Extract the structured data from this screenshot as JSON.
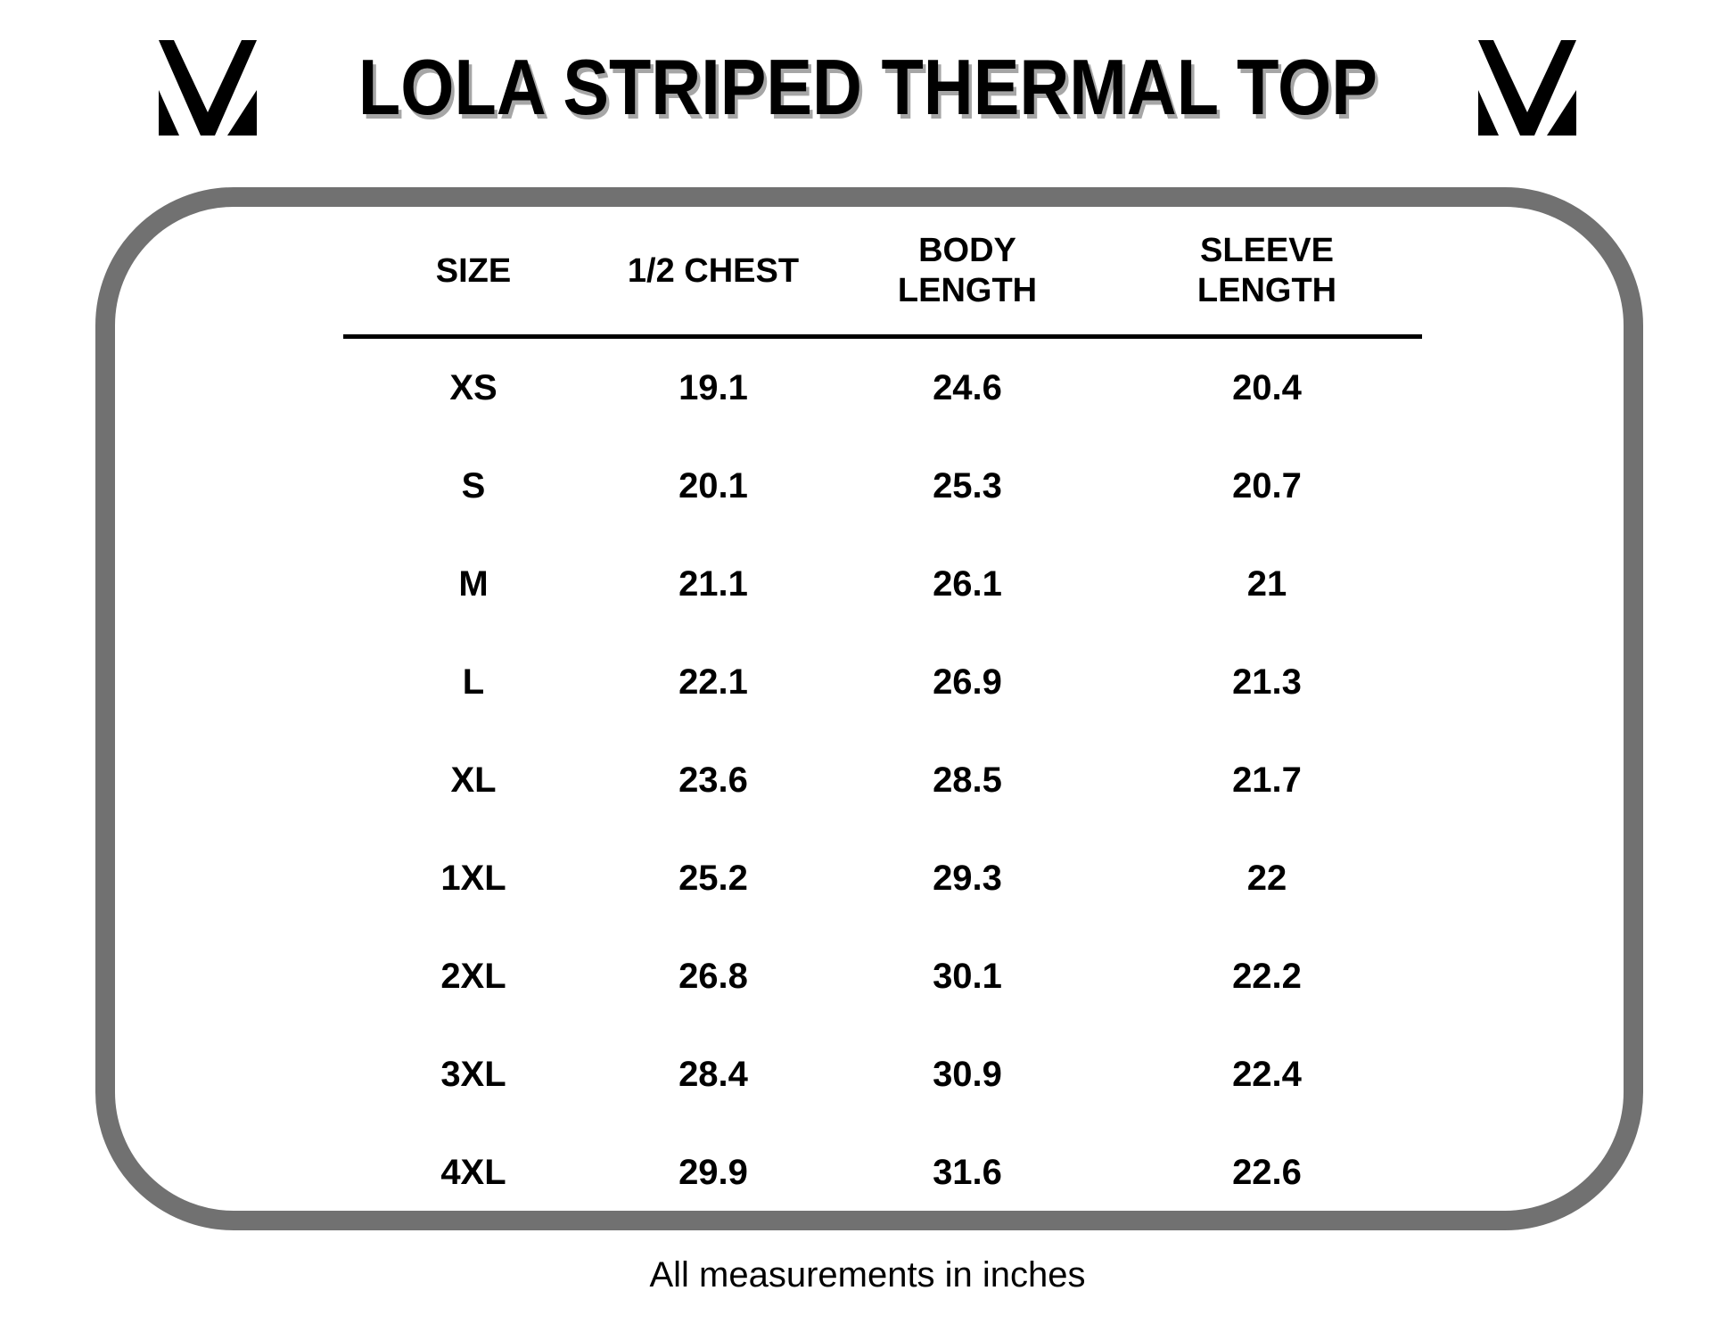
{
  "header": {
    "title": "LOLA STRIPED THERMAL TOP"
  },
  "logo": {
    "name": "mv-monogram",
    "color": "#000000"
  },
  "colors": {
    "background": "#ffffff",
    "panel_border_gray": "#717171",
    "title_shadow_gray": "#a6a6a6",
    "text": "#000000",
    "header_rule": "#000000"
  },
  "size_chart": {
    "columns": [
      "SIZE",
      "1/2 CHEST",
      "BODY\nLENGTH",
      "SLEEVE\nLENGTH"
    ],
    "rows": [
      [
        "XS",
        "19.1",
        "24.6",
        "20.4"
      ],
      [
        "S",
        "20.1",
        "25.3",
        "20.7"
      ],
      [
        "M",
        "21.1",
        "26.1",
        "21"
      ],
      [
        "L",
        "22.1",
        "26.9",
        "21.3"
      ],
      [
        "XL",
        "23.6",
        "28.5",
        "21.7"
      ],
      [
        "1XL",
        "25.2",
        "29.3",
        "22"
      ],
      [
        "2XL",
        "26.8",
        "30.1",
        "22.2"
      ],
      [
        "3XL",
        "28.4",
        "30.9",
        "22.4"
      ],
      [
        "4XL",
        "29.9",
        "31.6",
        "22.6"
      ]
    ]
  },
  "footer": {
    "note": "All measurements in inches"
  }
}
